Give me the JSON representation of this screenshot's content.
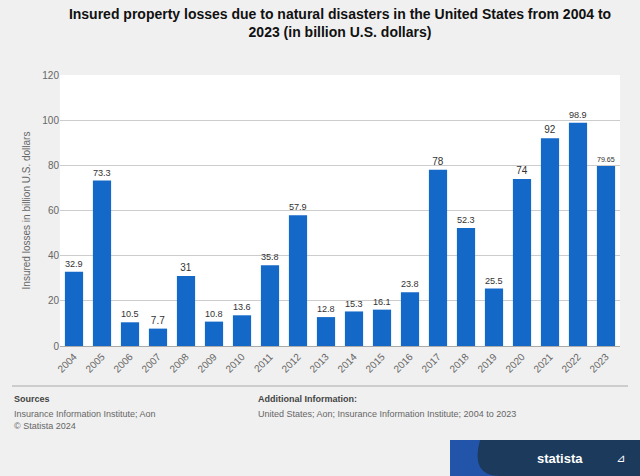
{
  "chart_data": {
    "type": "bar",
    "title": "Insured property losses due to natural disasters in the United States from 2004 to\n2023 (in billion U.S. dollars)",
    "ylabel": "Insured losses in billion U.S. dollars",
    "categories": [
      "2004",
      "2005",
      "2006",
      "2007",
      "2008",
      "2009",
      "2010",
      "2011",
      "2012",
      "2013",
      "2014",
      "2015",
      "2016",
      "2017",
      "2018",
      "2019",
      "2020",
      "2021",
      "2022",
      "2023"
    ],
    "values": [
      32.9,
      73.3,
      10.5,
      7.7,
      31,
      10.8,
      13.6,
      35.8,
      57.9,
      12.8,
      15.3,
      16.1,
      23.8,
      78,
      52.3,
      25.5,
      74,
      92,
      98.9,
      79.65
    ],
    "color": "#1469C8",
    "data_labels": true,
    "ylim": [
      0,
      120
    ],
    "yticks": [
      0,
      20,
      40,
      60,
      80,
      100,
      120
    ],
    "grid": true,
    "annotations": [
      "Sources",
      "Insurance Information Institute; Aon\n© Statista 2024",
      "Additional Information:",
      "United States; Aon; Insurance Information Institute; 2004 to 2023",
      "statista",
      "⊿"
    ]
  }
}
